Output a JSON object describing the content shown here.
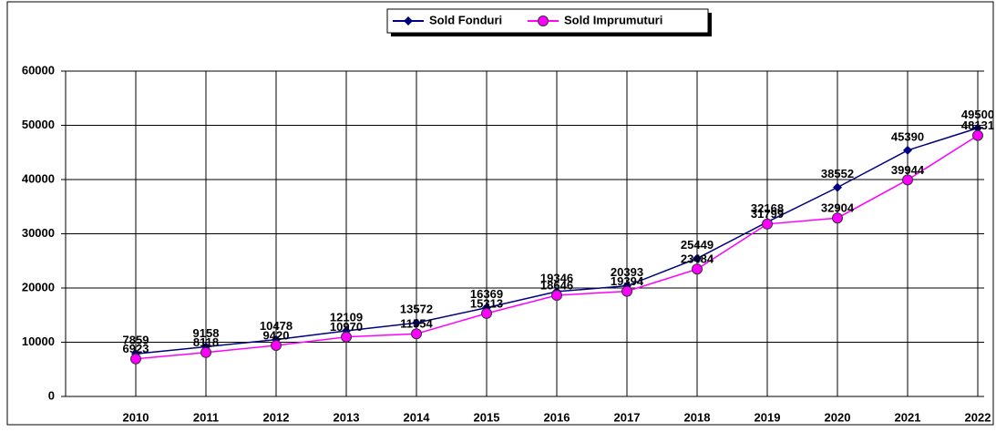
{
  "chart_data": {
    "type": "line",
    "categories": [
      "2010",
      "2011",
      "2012",
      "2013",
      "2014",
      "2015",
      "2016",
      "2017",
      "2018",
      "2019",
      "2020",
      "2021",
      "2022"
    ],
    "series": [
      {
        "name": "Sold Fonduri",
        "color": "#000080",
        "values": [
          7859,
          9158,
          10478,
          12109,
          13572,
          16369,
          19346,
          20393,
          25449,
          32168,
          38552,
          45390,
          49500
        ]
      },
      {
        "name": "Sold Imprumuturi",
        "color": "#ff00ff",
        "values": [
          6923,
          8118,
          9420,
          10970,
          11554,
          15313,
          18646,
          19394,
          23484,
          31799,
          32904,
          39944,
          48131
        ]
      }
    ],
    "ylim": [
      0,
      60000
    ],
    "yticks": [
      0,
      10000,
      20000,
      30000,
      40000,
      50000,
      60000
    ],
    "grid": true,
    "legend": "top"
  }
}
